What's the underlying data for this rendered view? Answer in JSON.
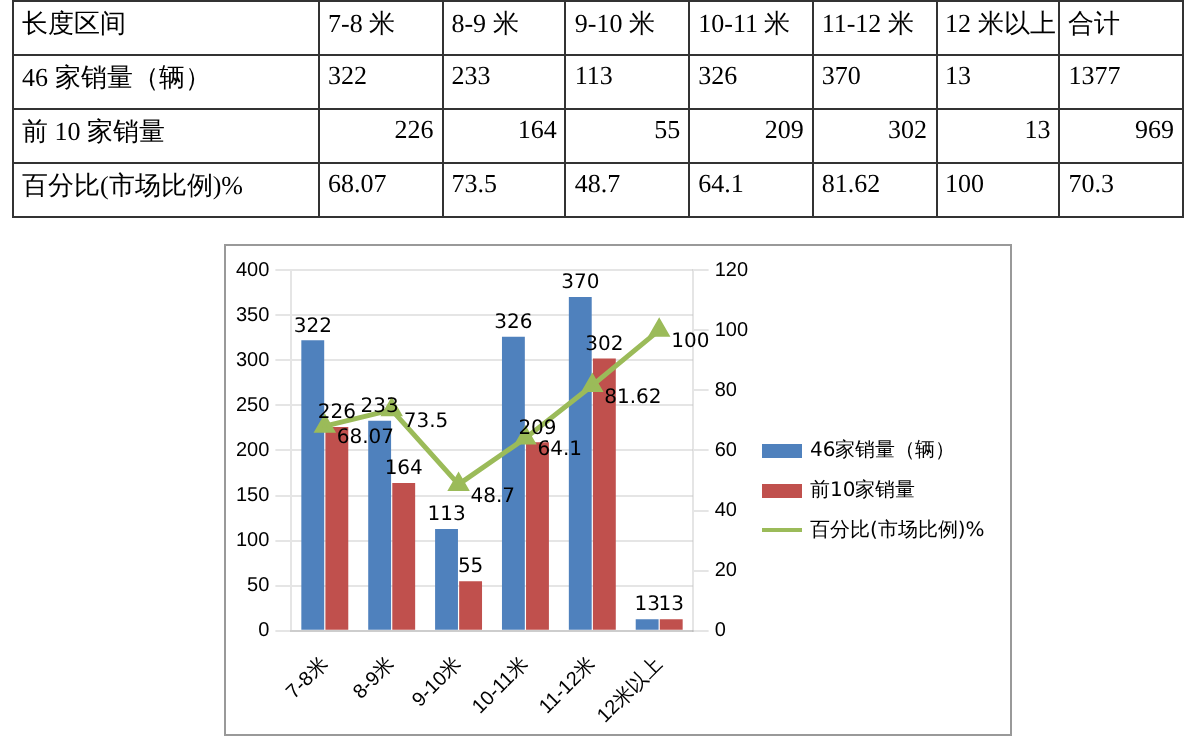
{
  "chart_data": [
    {
      "type": "heatmap",
      "xlabel": "长度区间",
      "categories": [
        "7-8 米",
        "8-9 米",
        "9-10 米",
        "10-11 米",
        "11-12 米",
        "12 米以上",
        "合计"
      ],
      "y_categories": [
        "46 家销量（辆）",
        "前 10 家销量",
        "百分比(市场比例)%"
      ],
      "cells": [
        [
          322,
          233,
          113,
          326,
          370,
          13,
          1377
        ],
        [
          226,
          164,
          55,
          209,
          302,
          13,
          969
        ],
        [
          68.07,
          73.5,
          48.7,
          64.1,
          81.62,
          100,
          70.3
        ]
      ],
      "data_labels": true
    },
    {
      "type": "bar",
      "categories": [
        "7-8米",
        "8-9米",
        "9-10米",
        "10-11米",
        "11-12米",
        "12米以上"
      ],
      "series": [
        {
          "name": "46家销量（辆）",
          "color": "#4f81bd",
          "values": [
            322,
            233,
            113,
            326,
            370,
            13
          ]
        },
        {
          "name": "前10家销量",
          "color": "#c0504d",
          "values": [
            226,
            164,
            55,
            209,
            302,
            13
          ]
        },
        {
          "name": "百分比(市场比例)%",
          "type": "line",
          "axis": "y2",
          "color": "#9bbb59",
          "marker": "triangle",
          "values": [
            68.07,
            73.5,
            48.7,
            64.1,
            81.62,
            100
          ]
        }
      ],
      "ylim": [
        0,
        400
      ],
      "yticks": [
        0,
        50,
        100,
        150,
        200,
        250,
        300,
        350,
        400
      ],
      "y2lim": [
        0,
        120
      ],
      "y2ticks": [
        0,
        20,
        40,
        60,
        80,
        100,
        120
      ],
      "grid": "y",
      "legend": "right",
      "data_labels": true
    }
  ]
}
